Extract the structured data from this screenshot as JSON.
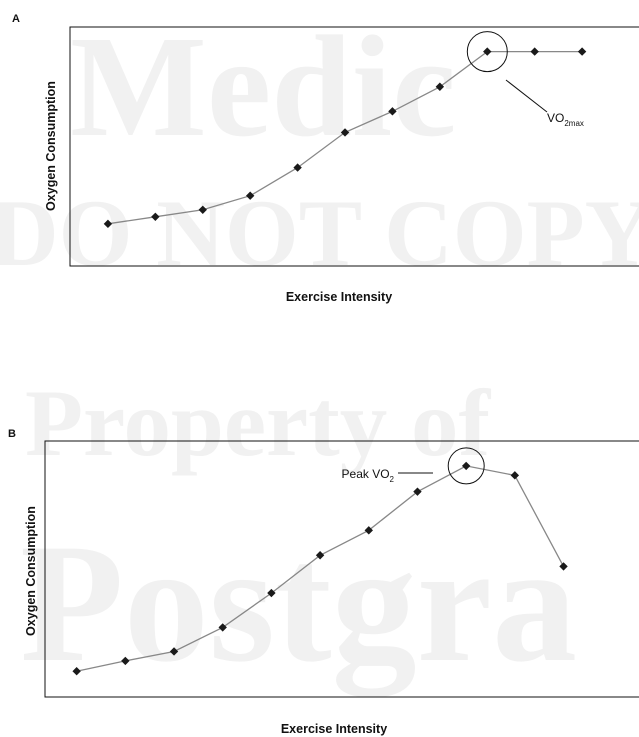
{
  "watermark": {
    "line1": "Medic",
    "line2": "DO NOT COPY",
    "line3": "Property of",
    "line4": "Postgra"
  },
  "chart_data": [
    {
      "type": "line",
      "panel_label": "A",
      "xlabel": "Exercise Intensity",
      "ylabel": "Oxygen Consumption",
      "x": [
        1,
        2,
        3,
        4,
        5,
        6,
        7,
        8,
        9,
        10,
        11
      ],
      "y": [
        6,
        7,
        8,
        10,
        14,
        19,
        22,
        25.5,
        30.5,
        30.5,
        30.5
      ],
      "xlim": [
        0.2,
        12.2
      ],
      "ylim": [
        0,
        34
      ],
      "grid": false,
      "annotation": {
        "text_main": "VO",
        "text_sub": "2max",
        "point_index": 8
      }
    },
    {
      "type": "line",
      "panel_label": "B",
      "xlabel": "Exercise Intensity",
      "ylabel": "Oxygen Consumption",
      "x": [
        1,
        2,
        3,
        4,
        5,
        6,
        7,
        8,
        9,
        10,
        11
      ],
      "y": [
        3,
        4.2,
        5.3,
        8.1,
        12.1,
        16.5,
        19.4,
        23.9,
        26.9,
        25.8,
        15.2
      ],
      "xlim": [
        0.35,
        12.55
      ],
      "ylim": [
        0,
        29.8
      ],
      "grid": false,
      "annotation": {
        "text_main": "Peak VO",
        "text_sub": "2",
        "point_index": 8
      }
    }
  ]
}
